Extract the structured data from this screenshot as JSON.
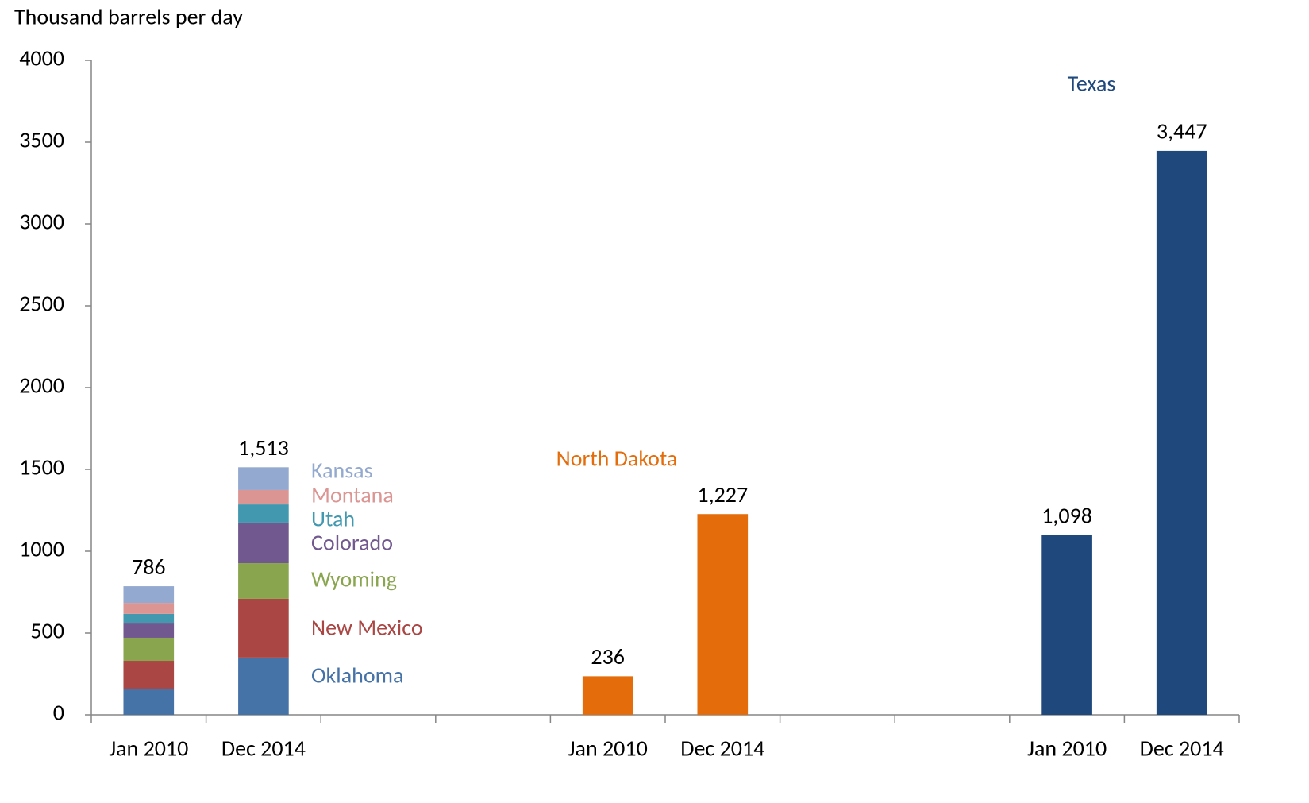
{
  "chart_data": {
    "type": "bar",
    "stacked": true,
    "y_label": "Thousand barrels per day",
    "categories": [
      "Jan 2010",
      "Dec 2014",
      null,
      null,
      "Jan 2010",
      "Dec 2014",
      null,
      null,
      "Jan 2010",
      "Dec 2014"
    ],
    "ylim": [
      0,
      4000
    ],
    "yticks": [
      0,
      500,
      1000,
      1500,
      2000,
      2500,
      3000,
      3500,
      4000
    ],
    "series": [
      {
        "name": "Oklahoma",
        "color": "#4572a7",
        "values": [
          160,
          350,
          null,
          null,
          null,
          null,
          null,
          null,
          null,
          null
        ]
      },
      {
        "name": "New Mexico",
        "color": "#aa4643",
        "values": [
          170,
          359,
          null,
          null,
          null,
          null,
          null,
          null,
          null,
          null
        ]
      },
      {
        "name": "Wyoming",
        "color": "#89a54e",
        "values": [
          141,
          218,
          null,
          null,
          null,
          null,
          null,
          null,
          null,
          null
        ]
      },
      {
        "name": "Colorado",
        "color": "#71588f",
        "values": [
          87,
          248,
          null,
          null,
          null,
          null,
          null,
          null,
          null,
          null
        ]
      },
      {
        "name": "Utah",
        "color": "#4198af",
        "values": [
          59,
          111,
          null,
          null,
          null,
          null,
          null,
          null,
          null,
          null
        ]
      },
      {
        "name": "Montana",
        "color": "#db9694",
        "values": [
          67,
          88,
          null,
          null,
          null,
          null,
          null,
          null,
          null,
          null
        ]
      },
      {
        "name": "Kansas",
        "color": "#93a9cf",
        "values": [
          102,
          139,
          null,
          null,
          null,
          null,
          null,
          null,
          null,
          null
        ]
      },
      {
        "name": "North Dakota",
        "color": "#e46c0a",
        "values": [
          null,
          null,
          null,
          null,
          236,
          1227,
          null,
          null,
          null,
          null
        ],
        "value_labels": [
          null,
          null,
          null,
          null,
          "236",
          "1,227",
          null,
          null,
          null,
          null
        ]
      },
      {
        "name": "Texas",
        "color": "#1f497d",
        "values": [
          null,
          null,
          null,
          null,
          null,
          null,
          null,
          null,
          1098,
          3447
        ],
        "value_labels": [
          null,
          null,
          null,
          null,
          null,
          null,
          null,
          null,
          "1,098",
          "3,447"
        ]
      }
    ],
    "stack_totals": {
      "values": [
        786,
        1513,
        null,
        null,
        null,
        null,
        null,
        null,
        null,
        null
      ],
      "value_labels": [
        "786",
        "1,513",
        null,
        null,
        null,
        null,
        null,
        null,
        null,
        null
      ]
    }
  }
}
